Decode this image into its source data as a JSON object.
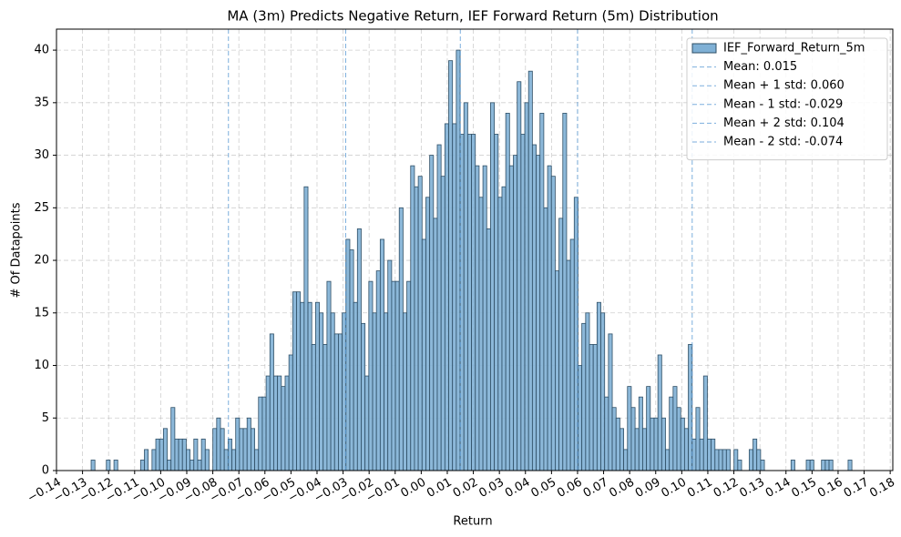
{
  "chart_data": {
    "type": "histogram",
    "title": "MA (3m) Predicts Negative Return, IEF Forward Return (5m) Distribution",
    "xlabel": "Return",
    "ylabel": "# Of Datapoints",
    "series": [
      {
        "name": "IEF_Forward_Return_5m",
        "color": "#7fb0d5",
        "edgecolor": "#2f4f66",
        "bins": [
          -0.1267,
          -0.12524,
          -0.12378,
          -0.12232,
          -0.12086,
          -0.1194,
          -0.11794,
          -0.11648,
          -0.11502,
          -0.11356,
          -0.1121,
          -0.11064,
          -0.10918,
          -0.10772,
          -0.10626,
          -0.1048,
          -0.10334,
          -0.10188,
          -0.10042,
          -0.09896,
          -0.0975,
          -0.09604,
          -0.09458,
          -0.09312,
          -0.09166,
          -0.0902,
          -0.08874,
          -0.08728,
          -0.08582,
          -0.08436,
          -0.0829,
          -0.08144,
          -0.07998,
          -0.07852,
          -0.07706,
          -0.0756,
          -0.07414,
          -0.07268,
          -0.07122,
          -0.06976,
          -0.0683,
          -0.06684,
          -0.06538,
          -0.06392,
          -0.06246,
          -0.061,
          -0.05954,
          -0.05808,
          -0.05662,
          -0.05516,
          -0.0537,
          -0.05224,
          -0.05078,
          -0.04932,
          -0.04786,
          -0.0464,
          -0.04494,
          -0.04348,
          -0.04202,
          -0.04056,
          -0.0391,
          -0.03764,
          -0.03618,
          -0.03472,
          -0.03326,
          -0.0318,
          -0.03034,
          -0.02888,
          -0.02742,
          -0.02596,
          -0.0245,
          -0.02304,
          -0.02158,
          -0.02012,
          -0.01866,
          -0.0172,
          -0.01574,
          -0.01428,
          -0.01282,
          -0.01136,
          -0.0099,
          -0.00844,
          -0.00698,
          -0.00552,
          -0.00406,
          -0.0026,
          -0.00114,
          0.00032,
          0.00178,
          0.00324,
          0.0047,
          0.00616,
          0.00762,
          0.00908,
          0.01054,
          0.012,
          0.01346,
          0.01492,
          0.01638,
          0.01784,
          0.0193,
          0.02076,
          0.02222,
          0.02368,
          0.02514,
          0.0266,
          0.02806,
          0.02952,
          0.03098,
          0.03244,
          0.0339,
          0.03536,
          0.03682,
          0.03828,
          0.03974,
          0.0412,
          0.04266,
          0.04412,
          0.04558,
          0.04704,
          0.0485,
          0.04996,
          0.05142,
          0.05288,
          0.05434,
          0.0558,
          0.05726,
          0.05872,
          0.06018,
          0.06164,
          0.0631,
          0.06456,
          0.06602,
          0.06748,
          0.06894,
          0.0704,
          0.07186,
          0.07332,
          0.07478,
          0.07624,
          0.0777,
          0.07916,
          0.08062,
          0.08208,
          0.08354,
          0.085,
          0.08646,
          0.08792,
          0.08938,
          0.09084,
          0.0923,
          0.09376,
          0.09522,
          0.09668,
          0.09814,
          0.0996,
          0.10106,
          0.10252,
          0.10398,
          0.10544,
          0.1069,
          0.10836,
          0.10982,
          0.11128,
          0.11274,
          0.1142,
          0.11566,
          0.11712,
          0.11858,
          0.12004,
          0.1215,
          0.12296,
          0.12442,
          0.12588,
          0.12734,
          0.1288,
          0.13026,
          0.13172,
          0.13318,
          0.13464,
          0.1361,
          0.13756,
          0.13902,
          0.14048,
          0.14194,
          0.1434,
          0.14486,
          0.14632,
          0.14778,
          0.14924,
          0.1507,
          0.15216,
          0.15362,
          0.15508,
          0.15654,
          0.158,
          0.15946,
          0.16092,
          0.16238,
          0.16384,
          0.1653
        ],
        "values": [
          1,
          0,
          0,
          0,
          1,
          0,
          1,
          0,
          0,
          0,
          0,
          0,
          0,
          1,
          2,
          0,
          2,
          3,
          3,
          4,
          1,
          6,
          3,
          3,
          3,
          2,
          1,
          3,
          1,
          3,
          2,
          0,
          4,
          5,
          4,
          2,
          3,
          2,
          5,
          4,
          4,
          5,
          4,
          2,
          7,
          7,
          9,
          13,
          9,
          9,
          8,
          9,
          11,
          17,
          17,
          16,
          27,
          16,
          12,
          16,
          15,
          12,
          18,
          15,
          13,
          13,
          15,
          22,
          21,
          16,
          23,
          14,
          9,
          18,
          15,
          19,
          22,
          15,
          20,
          18,
          18,
          25,
          15,
          18,
          29,
          27,
          28,
          22,
          26,
          30,
          24,
          31,
          28,
          33,
          39,
          33,
          40,
          32,
          35,
          32,
          32,
          29,
          26,
          29,
          23,
          35,
          32,
          26,
          27,
          34,
          29,
          30,
          37,
          32,
          35,
          38,
          31,
          30,
          34,
          25,
          29,
          28,
          19,
          24,
          34,
          20,
          22,
          26,
          10,
          14,
          15,
          12,
          12,
          16,
          15,
          7,
          13,
          6,
          5,
          4,
          2,
          8,
          6,
          4,
          7,
          4,
          8,
          5,
          5,
          11,
          5,
          2,
          7,
          8,
          6,
          5,
          4,
          12,
          3,
          6,
          3,
          9,
          3,
          3,
          2,
          2,
          2,
          2,
          0,
          2,
          1,
          0,
          0,
          2,
          3,
          2,
          1,
          0,
          0,
          0,
          0,
          0,
          0,
          0,
          1,
          0,
          0,
          0,
          1,
          1,
          0,
          0,
          1,
          1,
          1,
          0,
          0,
          0,
          0,
          1
        ]
      }
    ],
    "vlines": [
      {
        "label": "Mean: 0.015",
        "value": 0.015
      },
      {
        "label": "Mean + 1 std: 0.060",
        "value": 0.06
      },
      {
        "label": "Mean - 1 std: -0.029",
        "value": -0.029
      },
      {
        "label": "Mean + 2 std: 0.104",
        "value": 0.104
      },
      {
        "label": "Mean - 2 std: -0.074",
        "value": -0.074
      }
    ],
    "vline_color": "#5b9bd5",
    "xlim": [
      -0.14,
      0.181
    ],
    "ylim": [
      0,
      42
    ],
    "xticks": [
      {
        "value": -0.14,
        "label": "−0.14"
      },
      {
        "value": -0.13,
        "label": "−0.13"
      },
      {
        "value": -0.12,
        "label": "−0.12"
      },
      {
        "value": -0.11,
        "label": "−0.11"
      },
      {
        "value": -0.1,
        "label": "−0.10"
      },
      {
        "value": -0.09,
        "label": "−0.09"
      },
      {
        "value": -0.08,
        "label": "−0.08"
      },
      {
        "value": -0.07,
        "label": "−0.07"
      },
      {
        "value": -0.06,
        "label": "−0.06"
      },
      {
        "value": -0.05,
        "label": "−0.05"
      },
      {
        "value": -0.04,
        "label": "−0.04"
      },
      {
        "value": -0.03,
        "label": "−0.03"
      },
      {
        "value": -0.02,
        "label": "−0.02"
      },
      {
        "value": -0.01,
        "label": "−0.01"
      },
      {
        "value": 0,
        "label": "0.00"
      },
      {
        "value": 0.01,
        "label": "0.01"
      },
      {
        "value": 0.02,
        "label": "0.02"
      },
      {
        "value": 0.03,
        "label": "0.03"
      },
      {
        "value": 0.04,
        "label": "0.04"
      },
      {
        "value": 0.05,
        "label": "0.05"
      },
      {
        "value": 0.06,
        "label": "0.06"
      },
      {
        "value": 0.07,
        "label": "0.07"
      },
      {
        "value": 0.08,
        "label": "0.08"
      },
      {
        "value": 0.09,
        "label": "0.09"
      },
      {
        "value": 0.1,
        "label": "0.10"
      },
      {
        "value": 0.11,
        "label": "0.11"
      },
      {
        "value": 0.12,
        "label": "0.12"
      },
      {
        "value": 0.13,
        "label": "0.13"
      },
      {
        "value": 0.14,
        "label": "0.14"
      },
      {
        "value": 0.15,
        "label": "0.15"
      },
      {
        "value": 0.16,
        "label": "0.16"
      },
      {
        "value": 0.17,
        "label": "0.17"
      },
      {
        "value": 0.18,
        "label": "0.18"
      }
    ],
    "yticks": [
      0,
      5,
      10,
      15,
      20,
      25,
      30,
      35,
      40
    ],
    "grid": true,
    "legend": "upper right"
  }
}
